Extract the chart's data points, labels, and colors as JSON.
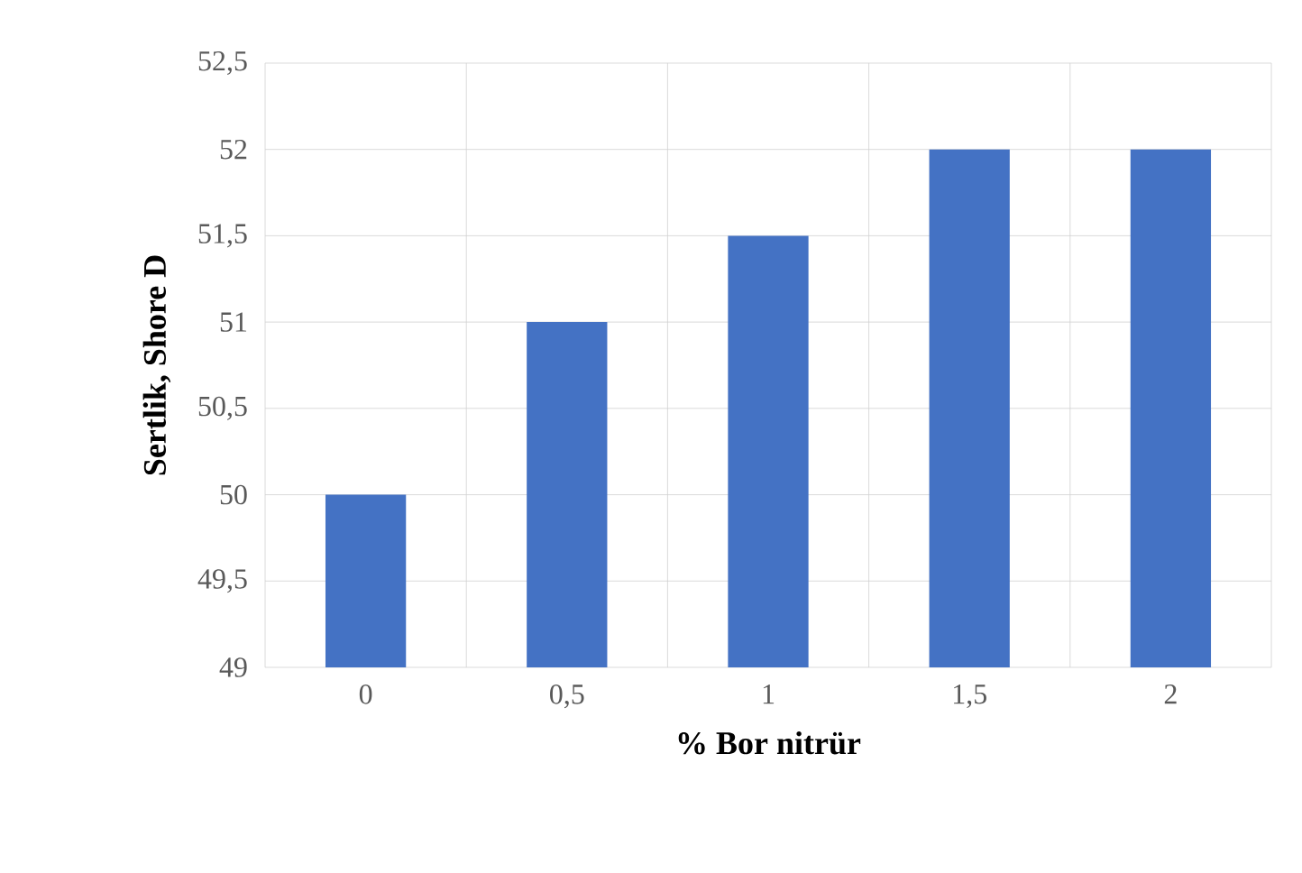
{
  "chart_data": {
    "type": "bar",
    "xlabel": "% Bor nitrür",
    "ylabel": "Sertlik, Shore D",
    "categories": [
      "0",
      "0,5",
      "1",
      "1,5",
      "2"
    ],
    "values": [
      50,
      51,
      51.5,
      52,
      52
    ],
    "color": "#4472c4",
    "ylim": [
      49,
      52.5
    ],
    "yticks": [
      {
        "value": 49,
        "label": "49"
      },
      {
        "value": 49.5,
        "label": "49,5"
      },
      {
        "value": 50,
        "label": "50"
      },
      {
        "value": 50.5,
        "label": "50,5"
      },
      {
        "value": 51,
        "label": "51"
      },
      {
        "value": 51.5,
        "label": "51,5"
      },
      {
        "value": 52,
        "label": "52"
      },
      {
        "value": 52.5,
        "label": "52,5"
      }
    ],
    "grid": true
  }
}
